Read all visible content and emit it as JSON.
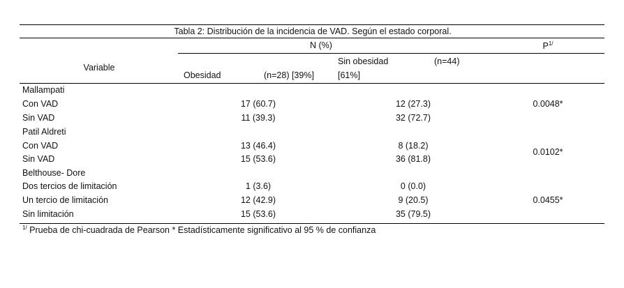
{
  "title": "Tabla 2: Distribución de la incidencia de VAD. Según el estado corporal.",
  "header": {
    "variable": "Variable",
    "n_pct": "N (%)",
    "p": "P",
    "p_sup": "1/",
    "obesidad": "Obesidad",
    "obesidad_n": "(n=28) [39%]",
    "sin_obesidad": "Sin obesidad",
    "sin_obesidad_n": "(n=44)",
    "sin_obesidad_pct": "[61%]"
  },
  "rows": [
    {
      "label": "Mallampati",
      "obesidad": "",
      "sin_obesidad": ""
    },
    {
      "label": "Con VAD",
      "obesidad": "17 (60.7)",
      "sin_obesidad": "12 (27.3)"
    },
    {
      "label": "Sin VAD",
      "obesidad": "11 (39.3)",
      "sin_obesidad": "32 (72.7)"
    },
    {
      "label": "Patil Aldreti",
      "obesidad": "",
      "sin_obesidad": ""
    },
    {
      "label": "Con VAD",
      "obesidad": "13 (46.4)",
      "sin_obesidad": "8 (18.2)"
    },
    {
      "label": "Sin VAD",
      "obesidad": "15 (53.6)",
      "sin_obesidad": "36 (81.8)"
    },
    {
      "label": "Belthouse- Dore",
      "obesidad": "",
      "sin_obesidad": ""
    },
    {
      "label": "Dos tercios de limitación",
      "obesidad": "1 (3.6)",
      "sin_obesidad": "0 (0.0)"
    },
    {
      "label": "Un tercio de limitación",
      "obesidad": "12 (42.9)",
      "sin_obesidad": "9 (20.5)"
    },
    {
      "label": "Sin limitación",
      "obesidad": "15 (53.6)",
      "sin_obesidad": "35 (79.5)"
    }
  ],
  "p_values": [
    "0.0048*",
    "0.0102*",
    "0.0455*"
  ],
  "footnote": {
    "sup": "1/",
    "text": " Prueba de chi-cuadrada de Pearson * Estadísticamente significativo al 95 % de confianza"
  }
}
